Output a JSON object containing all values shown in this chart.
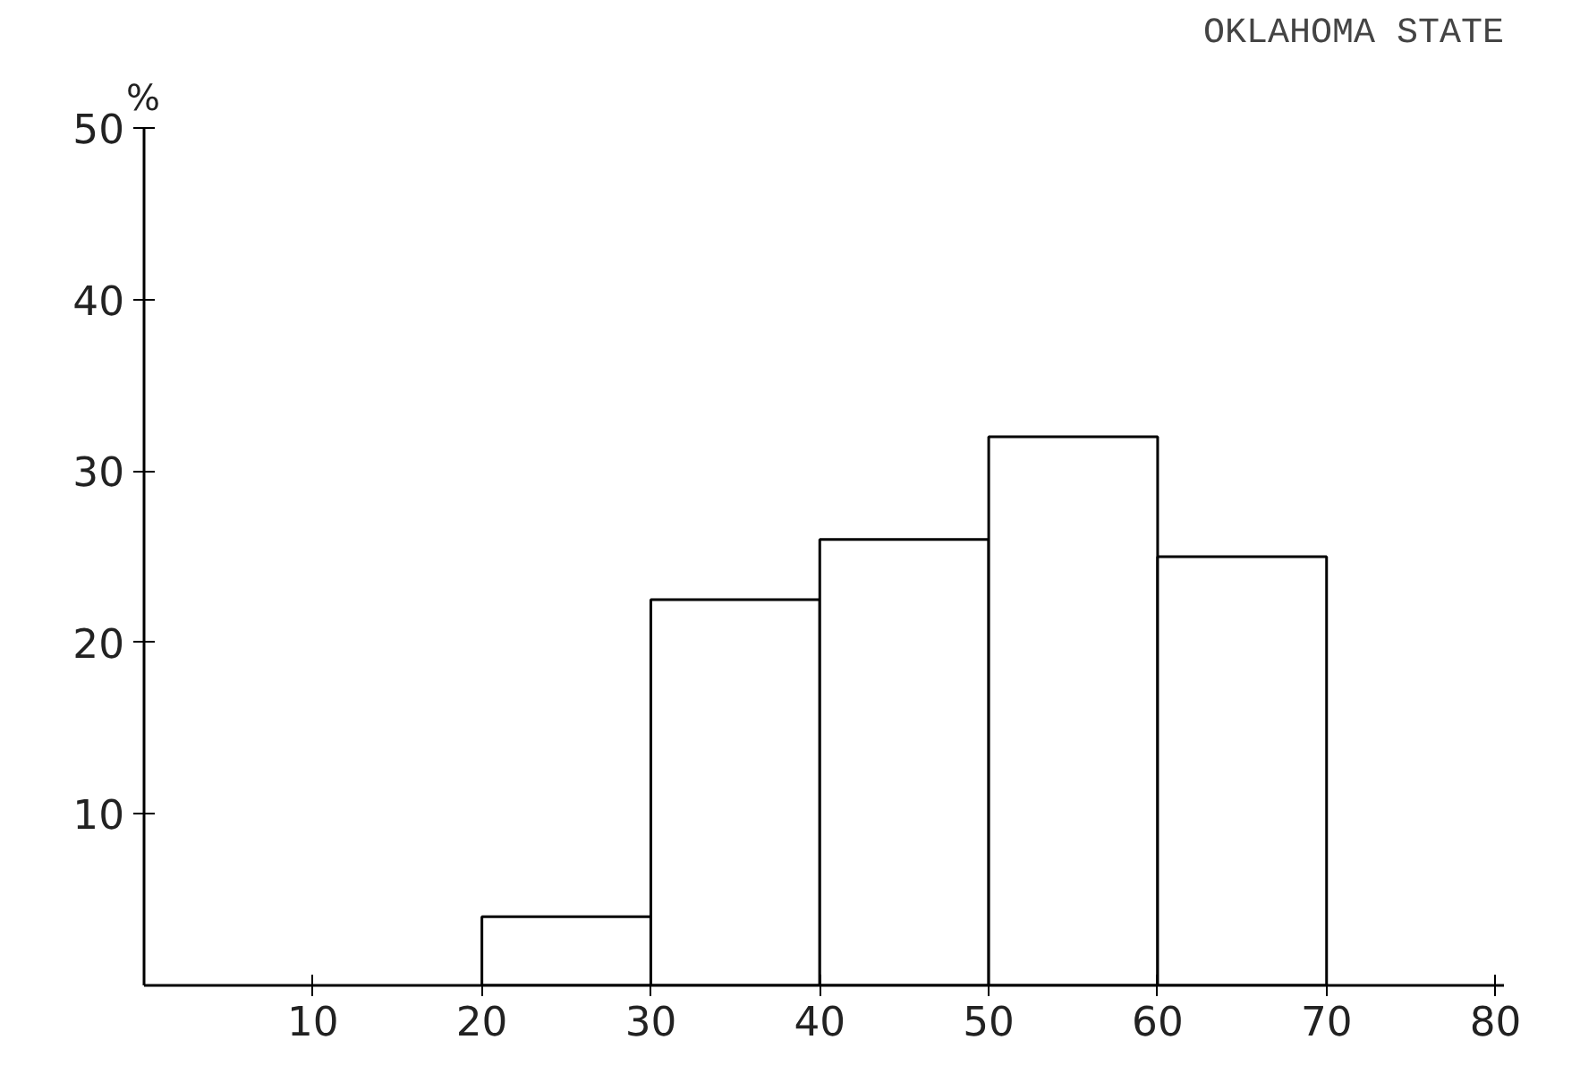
{
  "chart_data": {
    "type": "histogram",
    "title": "OKLAHOMA STATE",
    "ylabel": "%",
    "bins": [
      20,
      30,
      40,
      50,
      60,
      70
    ],
    "values": [
      4,
      22.5,
      26,
      32,
      25
    ],
    "color": "#ffffff",
    "xlim": [
      0,
      80.5
    ],
    "xticks": [
      10,
      20,
      30,
      40,
      50,
      60,
      70,
      80
    ],
    "ylim": [
      0,
      50
    ],
    "yticks": [
      10,
      20,
      30,
      40,
      50
    ],
    "grid": false
  }
}
